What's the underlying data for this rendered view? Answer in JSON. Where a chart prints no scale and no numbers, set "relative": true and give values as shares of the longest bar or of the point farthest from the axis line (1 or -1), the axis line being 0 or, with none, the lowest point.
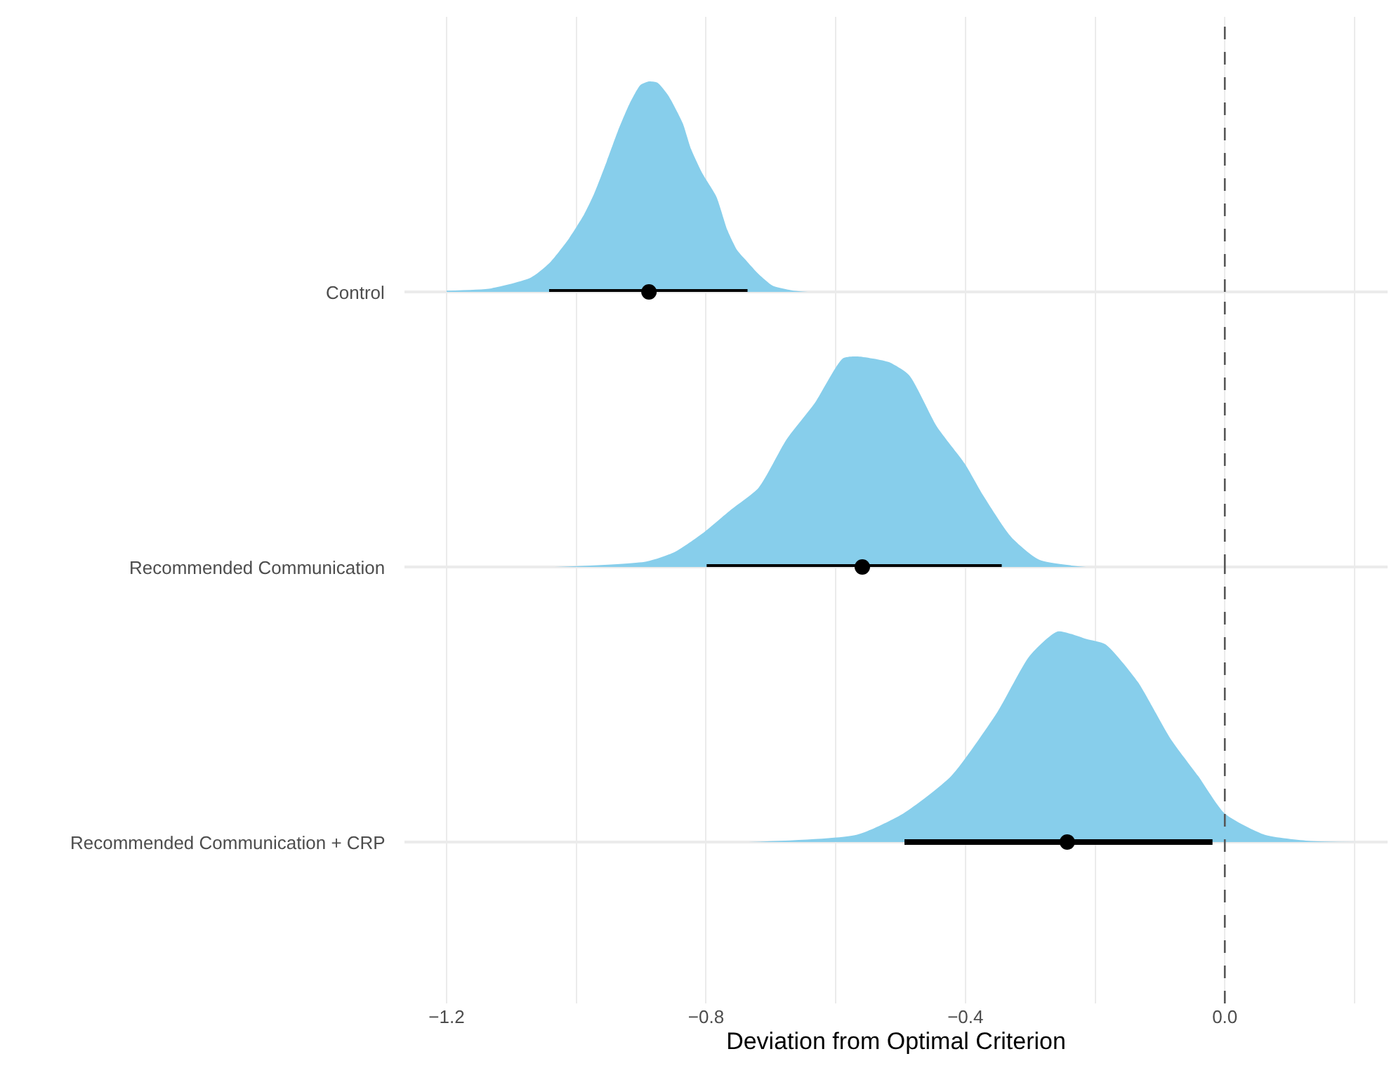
{
  "chart_data": [
    {
      "type": "area",
      "relative": true,
      "ylabel": "Control",
      "tick_labels": false,
      "grid": "x",
      "xlim": [
        -1.265,
        0.251
      ],
      "xticks": [
        {
          "value": -1.2,
          "label": null
        },
        {
          "value": -1.0,
          "label": null
        },
        {
          "value": -0.8,
          "label": null
        },
        {
          "value": -0.6,
          "label": null
        },
        {
          "value": -0.4,
          "label": null
        },
        {
          "value": -0.2,
          "label": null
        },
        {
          "value": 0.0,
          "label": null
        },
        {
          "value": 0.2,
          "label": null
        }
      ],
      "ref_lines": [
        {
          "axis": "x",
          "value": 0.0,
          "color": "#555555",
          "line_style": "dashed"
        }
      ],
      "series": [
        {
          "color": "#87ceeb",
          "x": [
            -1.2,
            -1.131,
            -1.07,
            -1.04,
            -1.011,
            -0.988,
            -0.973,
            -0.953,
            -0.936,
            -0.918,
            -0.901,
            -0.888,
            -0.875,
            -0.858,
            -0.836,
            -0.823,
            -0.806,
            -0.784,
            -0.767,
            -0.752,
            -0.736,
            -0.719,
            -0.697,
            -0.665,
            -0.643
          ],
          "values": [
            0.006,
            0.017,
            0.068,
            0.142,
            0.255,
            0.368,
            0.463,
            0.621,
            0.763,
            0.893,
            0.983,
            1,
            0.994,
            0.932,
            0.802,
            0.678,
            0.565,
            0.452,
            0.293,
            0.198,
            0.142,
            0.085,
            0.029,
            0.006,
            0
          ]
        },
        {
          "type": "scatter",
          "marker": "circle",
          "color": "#000000",
          "x": [
            -0.888
          ],
          "values": [
            0
          ],
          "xerrors": [
            [
              -1.042,
              -0.736
            ]
          ]
        }
      ]
    },
    {
      "type": "area",
      "relative": true,
      "ylabel": "Recommended Communication",
      "tick_labels": false,
      "grid": "x",
      "xlim": [
        -1.265,
        0.251
      ],
      "xticks": [
        {
          "value": -1.2,
          "label": null
        },
        {
          "value": -1.0,
          "label": null
        },
        {
          "value": -0.8,
          "label": null
        },
        {
          "value": -0.6,
          "label": null
        },
        {
          "value": -0.4,
          "label": null
        },
        {
          "value": -0.2,
          "label": null
        },
        {
          "value": 0.0,
          "label": null
        },
        {
          "value": 0.2,
          "label": null
        }
      ],
      "ref_lines": [
        {
          "axis": "x",
          "value": 0.0,
          "color": "#555555",
          "line_style": "dashed"
        }
      ],
      "series": [
        {
          "color": "#87ceeb",
          "x": [
            -1.033,
            -0.892,
            -0.849,
            -0.806,
            -0.762,
            -0.719,
            -0.676,
            -0.632,
            -0.589,
            -0.567,
            -0.518,
            -0.487,
            -0.444,
            -0.401,
            -0.373,
            -0.329,
            -0.286,
            -0.214
          ],
          "values": [
            0,
            0.026,
            0.07,
            0.158,
            0.271,
            0.376,
            0.605,
            0.78,
            0.991,
            1,
            0.973,
            0.912,
            0.667,
            0.491,
            0.342,
            0.141,
            0.034,
            0
          ]
        },
        {
          "type": "scatter",
          "marker": "circle",
          "color": "#000000",
          "x": [
            -0.559
          ],
          "values": [
            0
          ],
          "xerrors": [
            [
              -0.799,
              -0.344
            ]
          ]
        }
      ]
    },
    {
      "type": "area",
      "relative": true,
      "ylabel": "Recommended Communication + CRP",
      "xlabel": "Deviation from Optimal Criterion",
      "tick_labels": "x",
      "grid": "x",
      "xlim": [
        -1.265,
        0.251
      ],
      "xticks": [
        {
          "value": -1.2,
          "label": "−1.2"
        },
        {
          "value": -1.0,
          "label": null
        },
        {
          "value": -0.8,
          "label": "−0.8"
        },
        {
          "value": -0.6,
          "label": null
        },
        {
          "value": -0.4,
          "label": "−0.4"
        },
        {
          "value": -0.2,
          "label": null
        },
        {
          "value": 0.0,
          "label": "0.0"
        },
        {
          "value": 0.2,
          "label": null
        }
      ],
      "ref_lines": [
        {
          "axis": "x",
          "value": 0.0,
          "color": "#555555",
          "line_style": "dashed"
        }
      ],
      "series": [
        {
          "color": "#87ceeb",
          "x": [
            -0.734,
            -0.567,
            -0.496,
            -0.422,
            -0.351,
            -0.301,
            -0.258,
            -0.214,
            -0.184,
            -0.134,
            -0.084,
            -0.041,
            0.0,
            0.061,
            0.132,
            0.223
          ],
          "values": [
            0,
            0.035,
            0.135,
            0.313,
            0.616,
            0.884,
            1,
            0.965,
            0.939,
            0.76,
            0.492,
            0.313,
            0.135,
            0.035,
            0.005,
            0
          ]
        },
        {
          "type": "scatter",
          "marker": "circle",
          "color": "#000000",
          "x": [
            -0.243
          ],
          "values": [
            0
          ],
          "xerrors": [
            [
              -0.494,
              -0.019
            ]
          ]
        }
      ]
    }
  ]
}
